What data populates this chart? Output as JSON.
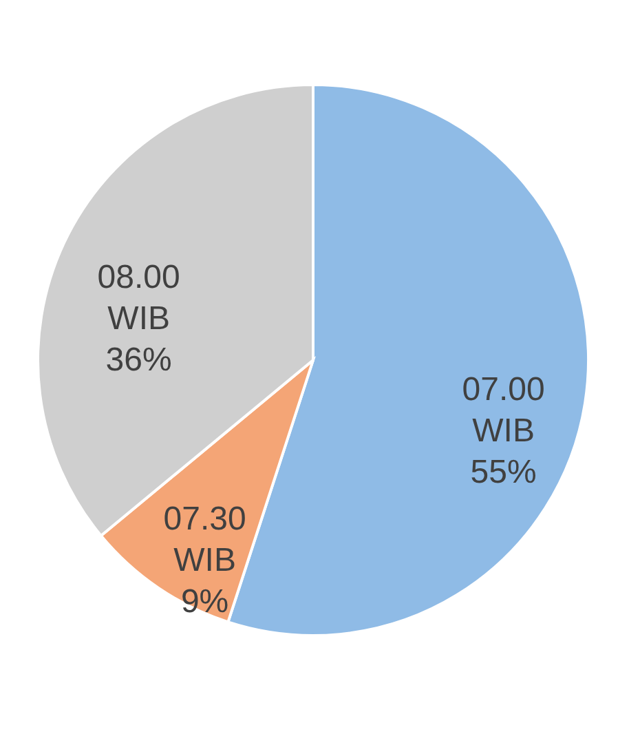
{
  "chart_data": {
    "type": "pie",
    "categories": [
      "07.00 WIB",
      "07.30 WIB",
      "08.00 WIB"
    ],
    "values": [
      55,
      9,
      36
    ],
    "value_labels": [
      "55%",
      "9%",
      "36%"
    ],
    "colors": [
      "#8fbbe6",
      "#f4a576",
      "#cfcfcf"
    ],
    "legend": false
  }
}
